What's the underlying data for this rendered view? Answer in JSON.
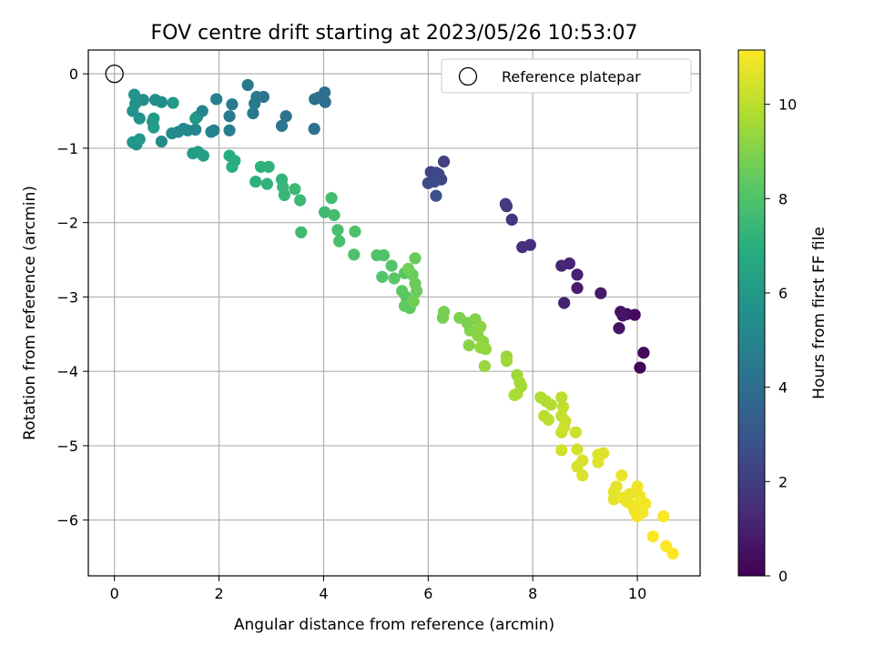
{
  "chart_data": {
    "type": "scatter",
    "title": "FOV centre drift starting at 2023/05/26 10:53:07",
    "xlabel": "Angular distance from reference (arcmin)",
    "ylabel": "Rotation from reference (arcmin)",
    "xlim": [
      -0.5,
      11.2
    ],
    "ylim": [
      -6.75,
      0.32
    ],
    "xticks": [
      0,
      2,
      4,
      6,
      8,
      10
    ],
    "yticks": [
      0,
      -1,
      -2,
      -3,
      -4,
      -5,
      -6
    ],
    "grid": true,
    "legend": {
      "location": "top-right",
      "entries": [
        "Reference platepar"
      ]
    },
    "reference_point": {
      "name": "Reference platepar",
      "x": 0,
      "y": 0,
      "marker": "open-circle"
    },
    "colorbar": {
      "label": "Hours from first FF file",
      "colormap": "viridis",
      "min": 0,
      "max": 11.15,
      "ticks": [
        0,
        2,
        4,
        6,
        8,
        10
      ]
    },
    "points": [
      {
        "x": 10.05,
        "y": -3.95,
        "c": 0.1
      },
      {
        "x": 10.12,
        "y": -3.75,
        "c": 0.2
      },
      {
        "x": 9.95,
        "y": -3.24,
        "c": 0.3
      },
      {
        "x": 9.8,
        "y": -3.23,
        "c": 0.4
      },
      {
        "x": 9.68,
        "y": -3.2,
        "c": 0.5
      },
      {
        "x": 9.65,
        "y": -3.42,
        "c": 0.6
      },
      {
        "x": 9.72,
        "y": -3.25,
        "c": 0.6
      },
      {
        "x": 9.3,
        "y": -2.95,
        "c": 0.8
      },
      {
        "x": 8.85,
        "y": -2.88,
        "c": 0.9
      },
      {
        "x": 8.6,
        "y": -3.08,
        "c": 1.0
      },
      {
        "x": 8.85,
        "y": -2.7,
        "c": 1.0
      },
      {
        "x": 8.7,
        "y": -2.55,
        "c": 1.1
      },
      {
        "x": 8.55,
        "y": -2.58,
        "c": 1.2
      },
      {
        "x": 7.95,
        "y": -2.3,
        "c": 1.4
      },
      {
        "x": 7.8,
        "y": -2.33,
        "c": 1.5
      },
      {
        "x": 7.6,
        "y": -1.96,
        "c": 1.7
      },
      {
        "x": 7.5,
        "y": -1.78,
        "c": 1.8
      },
      {
        "x": 7.48,
        "y": -1.75,
        "c": 1.9
      },
      {
        "x": 6.3,
        "y": -1.18,
        "c": 2.1
      },
      {
        "x": 6.2,
        "y": -1.35,
        "c": 2.2
      },
      {
        "x": 6.25,
        "y": -1.42,
        "c": 2.3
      },
      {
        "x": 6.05,
        "y": -1.32,
        "c": 2.3
      },
      {
        "x": 6.15,
        "y": -1.33,
        "c": 2.4
      },
      {
        "x": 6.0,
        "y": -1.47,
        "c": 2.5
      },
      {
        "x": 6.12,
        "y": -1.45,
        "c": 2.6
      },
      {
        "x": 6.15,
        "y": -1.64,
        "c": 2.7
      },
      {
        "x": 4.02,
        "y": -0.25,
        "c": 4.0
      },
      {
        "x": 4.03,
        "y": -0.38,
        "c": 4.0
      },
      {
        "x": 3.9,
        "y": -0.32,
        "c": 4.1
      },
      {
        "x": 3.83,
        "y": -0.34,
        "c": 4.1
      },
      {
        "x": 3.82,
        "y": -0.74,
        "c": 4.2
      },
      {
        "x": 3.28,
        "y": -0.57,
        "c": 4.2
      },
      {
        "x": 3.2,
        "y": -0.7,
        "c": 4.3
      },
      {
        "x": 2.85,
        "y": -0.31,
        "c": 4.3
      },
      {
        "x": 2.72,
        "y": -0.31,
        "c": 4.4
      },
      {
        "x": 2.55,
        "y": -0.15,
        "c": 4.4
      },
      {
        "x": 2.68,
        "y": -0.4,
        "c": 4.5
      },
      {
        "x": 2.65,
        "y": -0.53,
        "c": 4.5
      },
      {
        "x": 2.25,
        "y": -0.41,
        "c": 4.6
      },
      {
        "x": 2.2,
        "y": -0.57,
        "c": 4.6
      },
      {
        "x": 2.2,
        "y": -0.76,
        "c": 4.7
      },
      {
        "x": 1.95,
        "y": -0.34,
        "c": 4.8
      },
      {
        "x": 1.9,
        "y": -0.76,
        "c": 4.8
      },
      {
        "x": 1.85,
        "y": -0.78,
        "c": 4.9
      },
      {
        "x": 1.68,
        "y": -0.5,
        "c": 5.0
      },
      {
        "x": 1.58,
        "y": -0.58,
        "c": 5.0
      },
      {
        "x": 1.55,
        "y": -0.75,
        "c": 5.1
      },
      {
        "x": 1.4,
        "y": -0.76,
        "c": 5.1
      },
      {
        "x": 1.32,
        "y": -0.74,
        "c": 5.2
      },
      {
        "x": 1.22,
        "y": -0.78,
        "c": 5.2
      },
      {
        "x": 1.1,
        "y": -0.8,
        "c": 5.3
      },
      {
        "x": 0.9,
        "y": -0.91,
        "c": 5.3
      },
      {
        "x": 0.9,
        "y": -0.38,
        "c": 5.4
      },
      {
        "x": 0.78,
        "y": -0.35,
        "c": 5.4
      },
      {
        "x": 0.73,
        "y": -0.64,
        "c": 5.5
      },
      {
        "x": 0.55,
        "y": -0.35,
        "c": 5.5
      },
      {
        "x": 0.48,
        "y": -0.6,
        "c": 5.6
      },
      {
        "x": 0.4,
        "y": -0.4,
        "c": 5.6
      },
      {
        "x": 0.35,
        "y": -0.5,
        "c": 5.7
      },
      {
        "x": 0.38,
        "y": -0.28,
        "c": 5.7
      },
      {
        "x": 0.42,
        "y": -0.95,
        "c": 5.8
      },
      {
        "x": 0.35,
        "y": -0.92,
        "c": 5.8
      },
      {
        "x": 0.48,
        "y": -0.88,
        "c": 5.9
      },
      {
        "x": 1.55,
        "y": -0.6,
        "c": 5.9
      },
      {
        "x": 1.12,
        "y": -0.39,
        "c": 6.0
      },
      {
        "x": 0.75,
        "y": -0.6,
        "c": 6.0
      },
      {
        "x": 0.75,
        "y": -0.72,
        "c": 6.1
      },
      {
        "x": 1.5,
        "y": -1.07,
        "c": 6.1
      },
      {
        "x": 1.6,
        "y": -1.05,
        "c": 6.2
      },
      {
        "x": 1.7,
        "y": -1.1,
        "c": 6.2
      },
      {
        "x": 2.2,
        "y": -1.1,
        "c": 6.9
      },
      {
        "x": 2.3,
        "y": -1.17,
        "c": 6.9
      },
      {
        "x": 2.25,
        "y": -1.25,
        "c": 7.0
      },
      {
        "x": 2.7,
        "y": -1.45,
        "c": 7.1
      },
      {
        "x": 2.8,
        "y": -1.25,
        "c": 7.1
      },
      {
        "x": 2.95,
        "y": -1.25,
        "c": 7.2
      },
      {
        "x": 2.92,
        "y": -1.48,
        "c": 7.2
      },
      {
        "x": 3.2,
        "y": -1.42,
        "c": 7.3
      },
      {
        "x": 3.22,
        "y": -1.52,
        "c": 7.4
      },
      {
        "x": 3.25,
        "y": -1.63,
        "c": 7.4
      },
      {
        "x": 3.45,
        "y": -1.55,
        "c": 7.5
      },
      {
        "x": 3.55,
        "y": -1.7,
        "c": 7.5
      },
      {
        "x": 3.57,
        "y": -2.13,
        "c": 7.6
      },
      {
        "x": 4.02,
        "y": -1.86,
        "c": 7.6
      },
      {
        "x": 4.15,
        "y": -1.67,
        "c": 7.7
      },
      {
        "x": 4.2,
        "y": -1.9,
        "c": 7.7
      },
      {
        "x": 4.27,
        "y": -2.1,
        "c": 7.8
      },
      {
        "x": 4.3,
        "y": -2.25,
        "c": 7.8
      },
      {
        "x": 4.6,
        "y": -2.12,
        "c": 7.9
      },
      {
        "x": 4.58,
        "y": -2.43,
        "c": 7.9
      },
      {
        "x": 5.02,
        "y": -2.44,
        "c": 8.0
      },
      {
        "x": 5.15,
        "y": -2.44,
        "c": 8.0
      },
      {
        "x": 5.12,
        "y": -2.73,
        "c": 8.1
      },
      {
        "x": 5.3,
        "y": -2.58,
        "c": 8.1
      },
      {
        "x": 5.35,
        "y": -2.75,
        "c": 8.2
      },
      {
        "x": 5.55,
        "y": -2.68,
        "c": 8.2
      },
      {
        "x": 5.5,
        "y": -2.92,
        "c": 8.3
      },
      {
        "x": 5.58,
        "y": -3.0,
        "c": 8.3
      },
      {
        "x": 5.55,
        "y": -3.12,
        "c": 8.4
      },
      {
        "x": 5.65,
        "y": -3.15,
        "c": 8.4
      },
      {
        "x": 5.7,
        "y": -2.7,
        "c": 8.5
      },
      {
        "x": 5.75,
        "y": -2.48,
        "c": 8.5
      },
      {
        "x": 5.75,
        "y": -2.82,
        "c": 8.6
      },
      {
        "x": 5.78,
        "y": -2.92,
        "c": 8.6
      },
      {
        "x": 5.72,
        "y": -3.06,
        "c": 8.7
      },
      {
        "x": 5.62,
        "y": -2.62,
        "c": 8.7
      },
      {
        "x": 6.3,
        "y": -3.2,
        "c": 8.8
      },
      {
        "x": 6.28,
        "y": -3.28,
        "c": 8.8
      },
      {
        "x": 6.6,
        "y": -3.28,
        "c": 8.9
      },
      {
        "x": 6.75,
        "y": -3.35,
        "c": 8.9
      },
      {
        "x": 6.8,
        "y": -3.45,
        "c": 9.0
      },
      {
        "x": 6.9,
        "y": -3.3,
        "c": 9.0
      },
      {
        "x": 6.95,
        "y": -3.52,
        "c": 9.1
      },
      {
        "x": 6.78,
        "y": -3.65,
        "c": 9.1
      },
      {
        "x": 7.0,
        "y": -3.4,
        "c": 9.2
      },
      {
        "x": 7.05,
        "y": -3.6,
        "c": 9.2
      },
      {
        "x": 7.0,
        "y": -3.68,
        "c": 9.3
      },
      {
        "x": 7.1,
        "y": -3.7,
        "c": 9.3
      },
      {
        "x": 7.08,
        "y": -3.93,
        "c": 9.4
      },
      {
        "x": 7.5,
        "y": -3.8,
        "c": 9.4
      },
      {
        "x": 7.5,
        "y": -3.86,
        "c": 9.5
      },
      {
        "x": 7.7,
        "y": -4.05,
        "c": 9.5
      },
      {
        "x": 7.75,
        "y": -4.15,
        "c": 9.6
      },
      {
        "x": 7.78,
        "y": -4.2,
        "c": 9.6
      },
      {
        "x": 7.65,
        "y": -4.32,
        "c": 9.7
      },
      {
        "x": 7.7,
        "y": -4.3,
        "c": 9.7
      },
      {
        "x": 8.15,
        "y": -4.35,
        "c": 9.8
      },
      {
        "x": 8.25,
        "y": -4.4,
        "c": 9.8
      },
      {
        "x": 8.35,
        "y": -4.45,
        "c": 9.9
      },
      {
        "x": 8.22,
        "y": -4.6,
        "c": 9.9
      },
      {
        "x": 8.3,
        "y": -4.65,
        "c": 10.0
      },
      {
        "x": 8.55,
        "y": -4.35,
        "c": 10.0
      },
      {
        "x": 8.58,
        "y": -4.48,
        "c": 10.1
      },
      {
        "x": 8.55,
        "y": -4.6,
        "c": 10.1
      },
      {
        "x": 8.62,
        "y": -4.67,
        "c": 10.2
      },
      {
        "x": 8.55,
        "y": -4.82,
        "c": 10.2
      },
      {
        "x": 8.6,
        "y": -4.75,
        "c": 10.3
      },
      {
        "x": 8.82,
        "y": -4.82,
        "c": 10.3
      },
      {
        "x": 8.55,
        "y": -5.06,
        "c": 10.4
      },
      {
        "x": 8.85,
        "y": -5.05,
        "c": 10.4
      },
      {
        "x": 8.85,
        "y": -5.28,
        "c": 10.5
      },
      {
        "x": 8.95,
        "y": -5.4,
        "c": 10.5
      },
      {
        "x": 8.95,
        "y": -5.2,
        "c": 10.5
      },
      {
        "x": 9.25,
        "y": -5.12,
        "c": 10.6
      },
      {
        "x": 9.35,
        "y": -5.1,
        "c": 10.6
      },
      {
        "x": 9.25,
        "y": -5.22,
        "c": 10.6
      },
      {
        "x": 9.55,
        "y": -5.62,
        "c": 10.7
      },
      {
        "x": 9.6,
        "y": -5.55,
        "c": 10.7
      },
      {
        "x": 9.55,
        "y": -5.72,
        "c": 10.7
      },
      {
        "x": 9.7,
        "y": -5.4,
        "c": 10.8
      },
      {
        "x": 9.72,
        "y": -5.7,
        "c": 10.8
      },
      {
        "x": 9.85,
        "y": -5.65,
        "c": 10.8
      },
      {
        "x": 9.8,
        "y": -5.75,
        "c": 10.8
      },
      {
        "x": 9.9,
        "y": -5.8,
        "c": 10.9
      },
      {
        "x": 9.95,
        "y": -5.88,
        "c": 10.9
      },
      {
        "x": 10.0,
        "y": -5.55,
        "c": 10.9
      },
      {
        "x": 10.05,
        "y": -5.68,
        "c": 10.9
      },
      {
        "x": 10.0,
        "y": -5.95,
        "c": 11.0
      },
      {
        "x": 10.1,
        "y": -5.9,
        "c": 11.0
      },
      {
        "x": 10.15,
        "y": -5.78,
        "c": 11.0
      },
      {
        "x": 10.05,
        "y": -5.78,
        "c": 11.0
      },
      {
        "x": 10.3,
        "y": -6.22,
        "c": 11.1
      },
      {
        "x": 10.5,
        "y": -5.95,
        "c": 11.1
      },
      {
        "x": 10.55,
        "y": -6.35,
        "c": 11.1
      },
      {
        "x": 10.68,
        "y": -6.45,
        "c": 11.15
      }
    ]
  }
}
